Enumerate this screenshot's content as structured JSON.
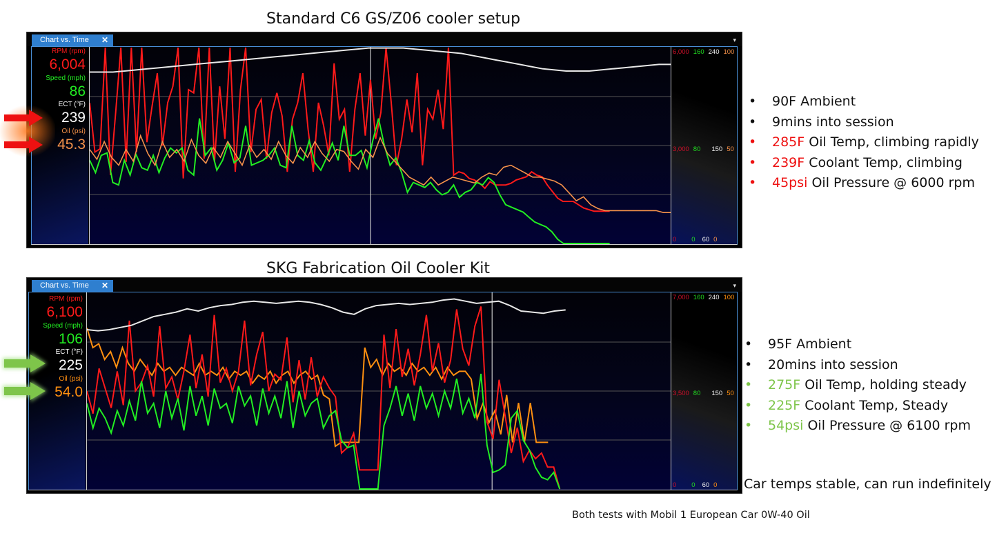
{
  "titles": {
    "top": "Standard C6 GS/Z06 cooler setup",
    "bottom": "SKG Fabrication Oil Cooler Kit",
    "footer": "Both tests with Mobil 1 European Car 0W-40 Oil"
  },
  "top_panel": {
    "tab_label": "Chart vs. Time",
    "tab_close": "✕",
    "dropdown": "▾",
    "channels": [
      {
        "label": "RPM (rpm)",
        "value": "6,004",
        "color": "#ff1a1a"
      },
      {
        "label": "Speed (mph)",
        "value": "86",
        "color": "#22ee22"
      },
      {
        "label": "ECT (°F)",
        "value": "239",
        "color": "#ffffff"
      },
      {
        "label": "Oil (psi)",
        "value": "45.3",
        "color": "#f4914a"
      }
    ],
    "scale_top": [
      "6,000",
      "160",
      "240",
      "100"
    ],
    "scale_mid": [
      "3,000",
      "80",
      "150",
      "50"
    ],
    "scale_bot": [
      "0",
      "0",
      "60",
      "0"
    ],
    "arrow_color": "#ee1111"
  },
  "bottom_panel": {
    "tab_label": "Chart vs. Time",
    "tab_close": "✕",
    "dropdown": "▾",
    "channels": [
      {
        "label": "RPM (rpm)",
        "value": "6,100",
        "color": "#ff1a1a"
      },
      {
        "label": "Speed (mph)",
        "value": "106",
        "color": "#22ee22"
      },
      {
        "label": "ECT (°F)",
        "value": "225",
        "color": "#ffffff"
      },
      {
        "label": "Oil (psi)",
        "value": "54.0",
        "color": "#ff9010"
      }
    ],
    "scale_top": [
      "7,000",
      "160",
      "240",
      "100"
    ],
    "scale_mid": [
      "3,500",
      "80",
      "150",
      "50"
    ],
    "scale_bot": [
      "0",
      "0",
      "60",
      "0"
    ],
    "arrow_color": "#7ec54a"
  },
  "notes_top": [
    {
      "bullet": "•",
      "highlight": "",
      "text": "90F Ambient",
      "bullet_color": "#111"
    },
    {
      "bullet": "•",
      "highlight": "",
      "text": "9mins into session",
      "bullet_color": "#111"
    },
    {
      "bullet": "•",
      "highlight": "285F",
      "text": " Oil Temp, climbing rapidly",
      "bullet_color": "#ee1111"
    },
    {
      "bullet": "•",
      "highlight": "239F",
      "text": " Coolant Temp, climbing",
      "bullet_color": "#ee1111"
    },
    {
      "bullet": "•",
      "highlight": "45psi",
      "text": " Oil Pressure @ 6000 rpm",
      "bullet_color": "#ee1111"
    }
  ],
  "notes_bottom": [
    {
      "bullet": "•",
      "highlight": "",
      "text": "95F Ambient",
      "bullet_color": "#111"
    },
    {
      "bullet": "•",
      "highlight": "",
      "text": "20mins into session",
      "bullet_color": "#111"
    },
    {
      "bullet": "•",
      "highlight": "275F",
      "text": " Oil Temp, holding steady",
      "bullet_color": "#7ec54a"
    },
    {
      "bullet": "•",
      "highlight": "225F",
      "text": " Coolant Temp, Steady",
      "bullet_color": "#7ec54a"
    },
    {
      "bullet": "•",
      "highlight": "54psi",
      "text": " Oil Pressure @ 6100 rpm",
      "bullet_color": "#7ec54a"
    }
  ],
  "conclusion": "Car temps stable, can run indefinitely",
  "chart_data": [
    {
      "type": "line",
      "title": "Standard C6 GS/Z06 cooler setup",
      "xlabel": "Time",
      "series": [
        {
          "name": "RPM (rpm)",
          "color": "#ff1a1a",
          "axis": [
            0,
            6000
          ],
          "current": 6004,
          "values": [
            4300,
            2800,
            2900,
            6000,
            2100,
            4000,
            6000,
            2500,
            6000,
            2800,
            6000,
            3100,
            4200,
            5200,
            3000,
            4300,
            4800,
            6000,
            2000,
            4700,
            4600,
            6000,
            2600,
            6000,
            2500,
            4800,
            3200,
            6000,
            2200,
            4700,
            6000,
            2800,
            4100,
            4400,
            2600,
            4000,
            4600,
            3900,
            2200,
            3800,
            4300,
            5200,
            3500,
            2200,
            4300,
            3600,
            2700,
            5500,
            3800,
            4100,
            2200,
            4100,
            5200,
            3300,
            5000,
            3200,
            4000,
            6000,
            4300,
            2400,
            3200,
            4400,
            3400,
            5200,
            2400,
            4100,
            3800,
            4700,
            3500,
            6000,
            2100,
            2200,
            2150,
            2000,
            1950,
            1850,
            1700,
            1900,
            1800,
            1800,
            1800,
            1850,
            1950,
            2000,
            2050,
            2200,
            2100,
            2050,
            1800,
            1600,
            1400,
            1300,
            1300,
            1300,
            1200,
            1100,
            1050,
            1000,
            1000,
            1000,
            1000
          ]
        },
        {
          "name": "Speed (mph)",
          "color": "#22ee22",
          "axis": [
            0,
            160
          ],
          "current": 86,
          "values": [
            68,
            58,
            72,
            74,
            50,
            48,
            68,
            56,
            73,
            62,
            60,
            72,
            58,
            70,
            78,
            74,
            78,
            60,
            56,
            102,
            72,
            78,
            60,
            68,
            82,
            66,
            70,
            96,
            64,
            66,
            68,
            72,
            78,
            64,
            62,
            96,
            72,
            68,
            84,
            66,
            60,
            70,
            82,
            68,
            96,
            72,
            72,
            76,
            62,
            84,
            102,
            80,
            64,
            70,
            58,
            42,
            50,
            48,
            46,
            50,
            44,
            40,
            42,
            48,
            38,
            42,
            44,
            50,
            48,
            54,
            50,
            40,
            32,
            30,
            28,
            26,
            22,
            18,
            16,
            14,
            10,
            4,
            0,
            0,
            0,
            0,
            0,
            0,
            0,
            0,
            0
          ]
        },
        {
          "name": "ECT (°F)",
          "color": "#ffffff",
          "axis": [
            60,
            240
          ],
          "current": 239,
          "values": [
            217,
            217,
            217,
            218,
            219,
            220,
            221,
            222,
            223,
            224,
            225,
            226,
            227,
            228,
            229,
            230,
            231,
            232,
            233,
            234,
            235,
            236,
            237,
            238,
            239,
            239,
            239,
            239,
            238,
            237,
            236,
            235,
            234,
            232,
            230,
            228,
            226,
            224,
            222,
            220,
            219,
            218,
            218,
            218,
            219,
            220,
            221,
            222,
            223,
            224,
            224
          ]
        },
        {
          "name": "Oil (psi)",
          "color": "#f4914a",
          "axis": [
            0,
            100
          ],
          "current": 45.3,
          "values": [
            48,
            43,
            52,
            44,
            40,
            48,
            42,
            55,
            46,
            40,
            52,
            44,
            48,
            42,
            53,
            45,
            41,
            49,
            44,
            52,
            46,
            40,
            50,
            44,
            48,
            43,
            52,
            45,
            41,
            49,
            44,
            52,
            46,
            42,
            48,
            47,
            42,
            38,
            48,
            44,
            54,
            46,
            42,
            38,
            34,
            32,
            30,
            34,
            30,
            32,
            34,
            33,
            32,
            31,
            34,
            36,
            35,
            39,
            40,
            38,
            36,
            34,
            34,
            33,
            32,
            30,
            26,
            22,
            24,
            20,
            18,
            17,
            17,
            17,
            17,
            17,
            17,
            17,
            17,
            16,
            16
          ]
        }
      ],
      "y_ticks_right": {
        "RPM": [
          0,
          3000,
          6000
        ],
        "Speed": [
          0,
          80,
          160
        ],
        "ECT": [
          60,
          150,
          240
        ],
        "Oil": [
          0,
          50,
          100
        ]
      },
      "grid": true,
      "cursor_x_fraction": 0.485
    },
    {
      "type": "line",
      "title": "SKG Fabrication Oil Cooler Kit",
      "xlabel": "Time",
      "series": [
        {
          "name": "RPM (rpm)",
          "color": "#ff1a1a",
          "axis": [
            0,
            7000
          ],
          "current": 6100,
          "values": [
            3500,
            2700,
            4300,
            3600,
            2900,
            4200,
            3000,
            6000,
            3500,
            3800,
            4400,
            3300,
            5800,
            3600,
            4000,
            3200,
            4200,
            5500,
            3600,
            4800,
            3300,
            6200,
            3800,
            4300,
            3500,
            4200,
            6000,
            3700,
            4800,
            5600,
            3500,
            4100,
            3900,
            5400,
            3100,
            4600,
            3200,
            4700,
            3300,
            4000,
            3600,
            3300,
            1300,
            1500,
            2000,
            700,
            700,
            700,
            700,
            5500,
            3600,
            5700,
            4000,
            5000,
            3700,
            4800,
            6200,
            4200,
            5200,
            3800,
            4600,
            6400,
            5000,
            4400,
            5800,
            6500,
            2400,
            1800,
            3900,
            2600,
            1300,
            2200,
            1000,
            1400,
            1100,
            1300,
            800,
            800,
            0
          ]
        },
        {
          "name": "Speed (mph)",
          "color": "#22ee22",
          "axis": [
            0,
            160
          ],
          "current": 106,
          "values": [
            70,
            50,
            66,
            58,
            46,
            64,
            52,
            72,
            56,
            88,
            62,
            70,
            50,
            80,
            58,
            74,
            48,
            84,
            60,
            76,
            52,
            82,
            66,
            70,
            54,
            84,
            68,
            76,
            52,
            82,
            62,
            76,
            58,
            88,
            50,
            80,
            60,
            70,
            74,
            50,
            60,
            64,
            40,
            34,
            36,
            0,
            0,
            0,
            0,
            52,
            66,
            84,
            60,
            78,
            56,
            84,
            66,
            78,
            60,
            80,
            66,
            90,
            62,
            74,
            58,
            94,
            36,
            14,
            16,
            20,
            58,
            64,
            40,
            32,
            18,
            10,
            8,
            14,
            0
          ]
        },
        {
          "name": "ECT (°F)",
          "color": "#ffffff",
          "axis": [
            60,
            240
          ],
          "current": 225,
          "values": [
            206,
            205,
            206,
            208,
            210,
            214,
            218,
            220,
            222,
            225,
            223,
            226,
            228,
            229,
            231,
            232,
            231,
            230,
            231,
            232,
            231,
            229,
            226,
            222,
            220,
            225,
            228,
            229,
            230,
            229,
            230,
            231,
            233,
            234,
            232,
            230,
            231,
            232,
            228,
            223,
            222,
            221,
            223,
            224
          ]
        },
        {
          "name": "Oil (psi)",
          "color": "#ff9010",
          "axis": [
            0,
            100
          ],
          "current": 54.0,
          "values": [
            82,
            72,
            74,
            66,
            70,
            62,
            72,
            64,
            60,
            66,
            62,
            58,
            64,
            60,
            62,
            58,
            62,
            60,
            58,
            64,
            58,
            60,
            58,
            62,
            56,
            60,
            58,
            60,
            54,
            58,
            56,
            60,
            54,
            58,
            60,
            54,
            58,
            60,
            56,
            58,
            48,
            46,
            22,
            24,
            24,
            24,
            24,
            72,
            62,
            66,
            58,
            64,
            60,
            62,
            58,
            64,
            60,
            62,
            58,
            62,
            56,
            62,
            58,
            60,
            60,
            56,
            36,
            44,
            34,
            40,
            28,
            48,
            24,
            44,
            24,
            44,
            24,
            24,
            24
          ]
        }
      ],
      "y_ticks_right": {
        "RPM": [
          0,
          3500,
          7000
        ],
        "Speed": [
          0,
          80,
          160
        ],
        "ECT": [
          60,
          150,
          240
        ],
        "Oil": [
          0,
          50,
          100
        ]
      },
      "grid": true,
      "cursor_x_fraction": 0.685
    }
  ]
}
